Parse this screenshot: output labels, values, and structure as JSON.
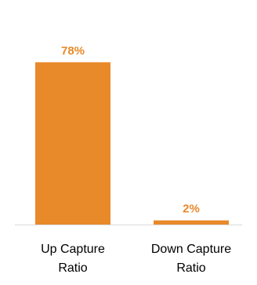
{
  "chart_data": {
    "type": "bar",
    "categories": [
      [
        "Up Capture",
        "Ratio"
      ],
      [
        "Down Capture",
        "Ratio"
      ]
    ],
    "values": [
      78,
      2
    ],
    "data_labels": [
      "78%",
      "2%"
    ],
    "ylim": [
      0,
      100
    ],
    "grid": false,
    "legend": "none",
    "colors": {
      "bar": "#E8892A",
      "label": "#E8892A",
      "axis": "#D9D9D9"
    }
  }
}
